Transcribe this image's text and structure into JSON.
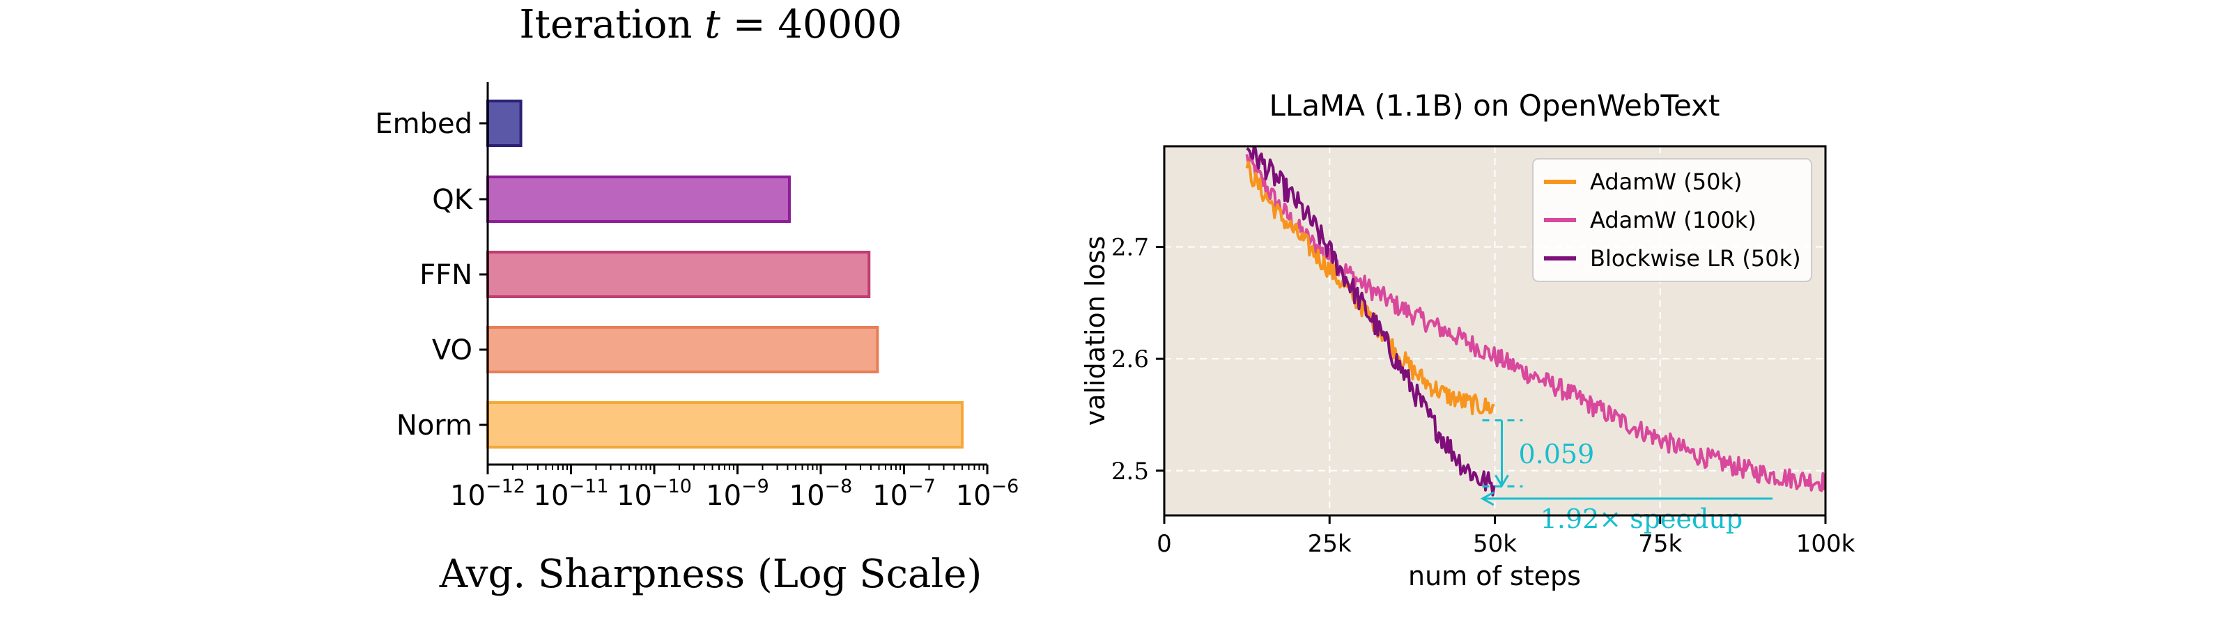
{
  "chart_data": [
    {
      "type": "bar",
      "orientation": "horizontal",
      "title": "Iteration t = 40000",
      "title_prefix": "Iteration",
      "title_var": "t",
      "title_eq": "= 40000",
      "xlabel": "Avg. Sharpness (Log Scale)",
      "ylabel": "",
      "xscale": "log",
      "xlim_exponents": [
        -12,
        -6
      ],
      "xtick_base": "10",
      "xtick_exponents": [
        "−12",
        "−11",
        "−10",
        "−9",
        "−8",
        "−7",
        "−6"
      ],
      "categories": [
        "Embed",
        "QK",
        "FFN",
        "VO",
        "Norm"
      ],
      "values": [
        2.5e-12,
        4.2e-09,
        3.8e-08,
        4.8e-08,
        5e-07
      ],
      "colors": [
        "#5b58a8",
        "#bb65be",
        "#de829f",
        "#f4a68a",
        "#fdc77e"
      ],
      "edge_colors": [
        "#2a2176",
        "#8c1f94",
        "#c13d72",
        "#e77e57",
        "#f4a838"
      ]
    },
    {
      "type": "line",
      "title": "LLaMA (1.1B) on OpenWebText",
      "xlabel": "num of steps",
      "ylabel": "validation loss",
      "xlim": [
        0,
        100000
      ],
      "ylim": [
        2.46,
        2.79
      ],
      "xticks": [
        0,
        25000,
        50000,
        75000,
        100000
      ],
      "xtick_labels": [
        "0",
        "25k",
        "50k",
        "75k",
        "100k"
      ],
      "yticks": [
        2.5,
        2.6,
        2.7
      ],
      "ytick_labels": [
        "2.5",
        "2.6",
        "2.7"
      ],
      "grid": true,
      "background": "#ede6dc",
      "legend_position": "top-right",
      "series": [
        {
          "name": "AdamW (50k)",
          "color": "#f7941d",
          "x": [
            12500,
            15000,
            17500,
            20000,
            22500,
            25000,
            27500,
            30000,
            32500,
            35000,
            37500,
            40000,
            42500,
            45000,
            47500,
            50000
          ],
          "y": [
            2.77,
            2.748,
            2.728,
            2.712,
            2.696,
            2.68,
            2.663,
            2.646,
            2.627,
            2.607,
            2.59,
            2.577,
            2.568,
            2.562,
            2.558,
            2.556
          ],
          "noise": 0.009
        },
        {
          "name": "AdamW (100k)",
          "color": "#d8489c",
          "x": [
            12500,
            15000,
            17500,
            20000,
            22500,
            25000,
            30000,
            35000,
            40000,
            45000,
            50000,
            55000,
            60000,
            65000,
            70000,
            75000,
            80000,
            85000,
            90000,
            95000,
            100000
          ],
          "y": [
            2.78,
            2.757,
            2.736,
            2.718,
            2.703,
            2.69,
            2.667,
            2.648,
            2.632,
            2.618,
            2.602,
            2.587,
            2.573,
            2.557,
            2.542,
            2.528,
            2.515,
            2.506,
            2.498,
            2.493,
            2.49
          ],
          "noise": 0.009
        },
        {
          "name": "Blockwise LR (50k)",
          "color": "#7d0e7a",
          "x": [
            12500,
            15000,
            17500,
            20000,
            22500,
            25000,
            27500,
            30000,
            32500,
            35000,
            37500,
            40000,
            42500,
            45000,
            47500,
            50000
          ],
          "y": [
            2.79,
            2.774,
            2.757,
            2.74,
            2.72,
            2.696,
            2.672,
            2.648,
            2.625,
            2.599,
            2.574,
            2.548,
            2.526,
            2.506,
            2.493,
            2.486
          ],
          "noise": 0.011
        }
      ],
      "annotations": {
        "gap_text": "0.059",
        "gap_value": 0.059,
        "gap_y_top": 2.545,
        "gap_y_bottom": 2.486,
        "gap_x": 50000,
        "speedup_text": "1.92× speedup",
        "speedup_value": 1.92,
        "speedup_x_from": 92000,
        "speedup_x_to": 47500,
        "speedup_y": 2.48,
        "color": "#17becf"
      }
    }
  ]
}
